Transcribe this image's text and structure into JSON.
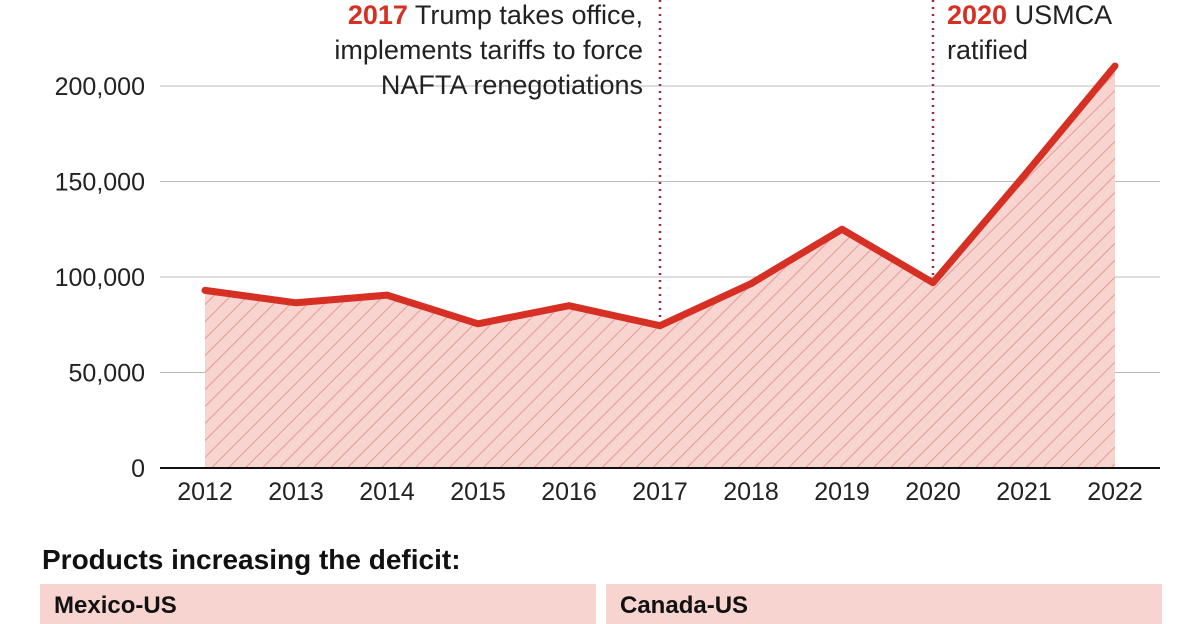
{
  "chart_data": {
    "type": "area",
    "categories": [
      "2012",
      "2013",
      "2014",
      "2015",
      "2016",
      "2017",
      "2018",
      "2019",
      "2020",
      "2021",
      "2022"
    ],
    "values": [
      93000,
      86500,
      90500,
      75500,
      85000,
      74500,
      96500,
      125000,
      97000,
      153000,
      210500
    ],
    "ylim": [
      0,
      220000
    ],
    "yticks": [
      0,
      50000,
      100000,
      150000,
      200000
    ],
    "ytick_labels": [
      "0",
      "50,000",
      "100,000",
      "150,000",
      "200,000"
    ],
    "grid": true,
    "colors": {
      "line": "#d63024",
      "fill": "#f7d4d0",
      "hatch": "#e0877e",
      "annotation": "#a3283a"
    },
    "annotations": [
      {
        "x": "2017",
        "year": "2017",
        "lines": [
          " Trump takes office,",
          "implements tariffs to force",
          "NAFTA renegotiations"
        ]
      },
      {
        "x": "2020",
        "year": "2020",
        "lines": [
          " USMCA",
          "ratified"
        ]
      }
    ]
  },
  "products": {
    "title": "Products increasing the deficit:",
    "boxes": [
      "Mexico-US",
      "Canada-US"
    ]
  }
}
